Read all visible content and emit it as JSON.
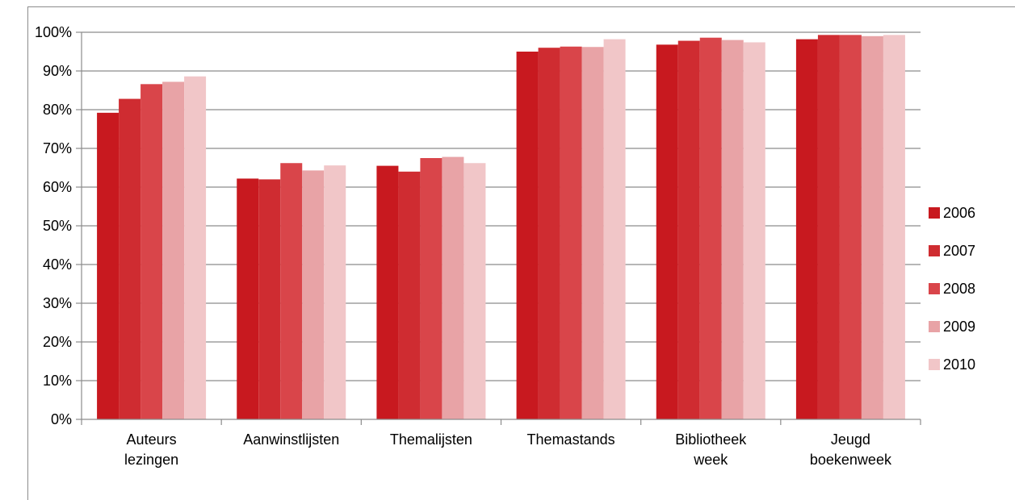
{
  "chart_data": {
    "type": "bar",
    "title": "",
    "xlabel": "",
    "ylabel": "",
    "ylim": [
      0,
      100
    ],
    "yticks": [
      "0%",
      "10%",
      "20%",
      "30%",
      "40%",
      "50%",
      "60%",
      "70%",
      "80%",
      "90%",
      "100%"
    ],
    "grid": true,
    "legend_position": "right",
    "categories": [
      [
        "Auteurs",
        "lezingen"
      ],
      [
        "Aanwinstlijsten"
      ],
      [
        "Themalijsten"
      ],
      [
        "Themastands"
      ],
      [
        "Bibliotheek",
        "week"
      ],
      [
        "Jeugd",
        "boekenweek"
      ]
    ],
    "series": [
      {
        "name": "2006",
        "color": "#c8191f",
        "values": [
          79.2,
          62.2,
          65.5,
          95.0,
          96.8,
          98.2
        ]
      },
      {
        "name": "2007",
        "color": "#cf2c31",
        "values": [
          82.8,
          62.0,
          64.0,
          96.0,
          97.8,
          99.3
        ]
      },
      {
        "name": "2008",
        "color": "#d9454a",
        "values": [
          86.6,
          66.2,
          67.5,
          96.3,
          98.6,
          99.3
        ]
      },
      {
        "name": "2009",
        "color": "#e8a3a6",
        "values": [
          87.2,
          64.3,
          67.8,
          96.2,
          98.0,
          99.0
        ]
      },
      {
        "name": "2010",
        "color": "#f1c6c8",
        "values": [
          88.6,
          65.6,
          66.2,
          98.2,
          97.4,
          99.3
        ]
      }
    ]
  }
}
